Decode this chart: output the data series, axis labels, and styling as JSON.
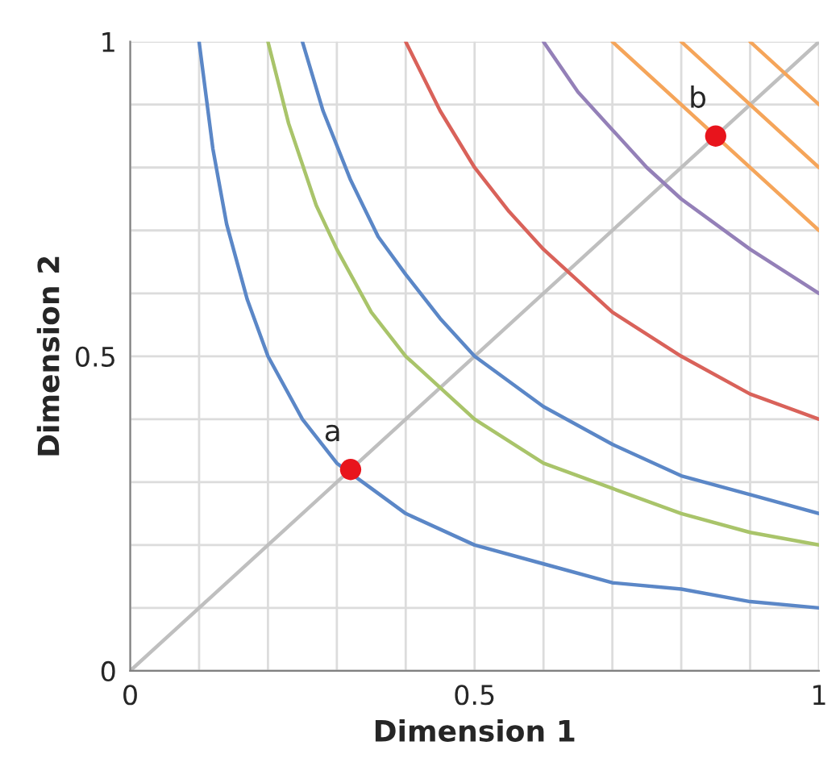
{
  "chart_data": {
    "type": "line",
    "xlabel": "Dimension 1",
    "ylabel": "Dimension 2",
    "xlim": [
      0,
      1
    ],
    "ylim": [
      0,
      1
    ],
    "xticks": [
      0,
      {
        "value": 0.1,
        "label": null
      },
      {
        "value": 0.2,
        "label": null
      },
      {
        "value": 0.3,
        "label": null
      },
      {
        "value": 0.4,
        "label": null
      },
      0.5,
      {
        "value": 0.6,
        "label": null
      },
      {
        "value": 0.7,
        "label": null
      },
      {
        "value": 0.8,
        "label": null
      },
      {
        "value": 0.9,
        "label": null
      },
      1
    ],
    "yticks": [
      0,
      {
        "value": 0.1,
        "label": null
      },
      {
        "value": 0.2,
        "label": null
      },
      {
        "value": 0.3,
        "label": null
      },
      {
        "value": 0.4,
        "label": null
      },
      0.5,
      {
        "value": 0.6,
        "label": null
      },
      {
        "value": 0.7,
        "label": null
      },
      {
        "value": 0.8,
        "label": null
      },
      {
        "value": 0.9,
        "label": null
      },
      1
    ],
    "grid": true,
    "series": [
      {
        "color": "#bfbfbf",
        "x": [
          0,
          1
        ],
        "values": [
          0,
          1
        ]
      },
      {
        "color": "#5b87c7",
        "x": [
          0.1,
          0.12,
          0.14,
          0.17,
          0.2,
          0.25,
          0.3,
          0.35,
          0.4,
          0.5,
          0.6,
          0.7,
          0.8,
          0.9,
          1.0
        ],
        "values": [
          1,
          0.83,
          0.71,
          0.59,
          0.5,
          0.4,
          0.33,
          0.29,
          0.25,
          0.2,
          0.17,
          0.14,
          0.13,
          0.11,
          0.1
        ]
      },
      {
        "color": "#a9c46a",
        "x": [
          0.2,
          0.23,
          0.27,
          0.3,
          0.35,
          0.4,
          0.5,
          0.6,
          0.7,
          0.8,
          0.9,
          1
        ],
        "values": [
          1,
          0.87,
          0.74,
          0.67,
          0.57,
          0.5,
          0.4,
          0.33,
          0.29,
          0.25,
          0.22,
          0.2
        ]
      },
      {
        "color": "#5b87c7",
        "x": [
          0.25,
          0.28,
          0.32,
          0.36,
          0.4,
          0.45,
          0.5,
          0.6,
          0.7,
          0.8,
          0.9,
          1
        ],
        "values": [
          1,
          0.89,
          0.78,
          0.69,
          0.63,
          0.56,
          0.5,
          0.42,
          0.36,
          0.31,
          0.28,
          0.25
        ]
      },
      {
        "color": "#d9625a",
        "x": [
          0.4,
          0.45,
          0.5,
          0.55,
          0.6,
          0.7,
          0.8,
          0.9,
          1
        ],
        "values": [
          1,
          0.89,
          0.8,
          0.73,
          0.67,
          0.57,
          0.5,
          0.44,
          0.4
        ]
      },
      {
        "color": "#9480b8",
        "x": [
          0.6,
          0.65,
          0.7,
          0.75,
          0.8,
          0.9,
          1
        ],
        "values": [
          1,
          0.92,
          0.86,
          0.8,
          0.75,
          0.67,
          0.6
        ]
      },
      {
        "color": "#f5a55a",
        "x": [
          0.7,
          1
        ],
        "values": [
          1,
          0.7
        ]
      },
      {
        "color": "#f5a55a",
        "x": [
          0.8,
          1
        ],
        "values": [
          1,
          0.8
        ]
      },
      {
        "color": "#f5a55a",
        "x": [
          0.9,
          1
        ],
        "values": [
          1,
          0.9
        ]
      },
      {
        "type": "scatter",
        "color": "#e8141c",
        "x": [
          0.32,
          0.85
        ],
        "values": [
          0.32,
          0.85
        ]
      }
    ],
    "annotations": [
      {
        "text": "a",
        "x": 0.32,
        "y": 0.32
      },
      {
        "text": "b",
        "x": 0.85,
        "y": 0.85
      }
    ]
  }
}
